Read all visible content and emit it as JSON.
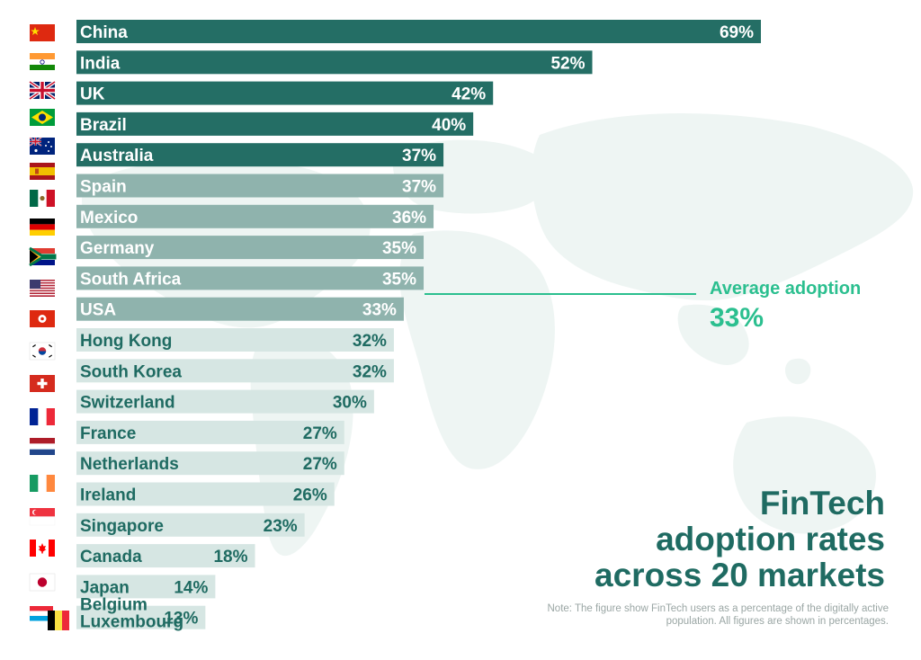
{
  "chart_data": {
    "type": "bar",
    "orientation": "horizontal",
    "categories": [
      "China",
      "India",
      "UK",
      "Brazil",
      "Australia",
      "Spain",
      "Mexico",
      "Germany",
      "South Africa",
      "USA",
      "Hong Kong",
      "South Korea",
      "Switzerland",
      "France",
      "Netherlands",
      "Ireland",
      "Singapore",
      "Canada",
      "Japan",
      "Belgium Luxembourg"
    ],
    "values": [
      69,
      52,
      42,
      40,
      37,
      37,
      36,
      35,
      35,
      33,
      32,
      32,
      30,
      27,
      27,
      26,
      23,
      18,
      14,
      13
    ],
    "value_labels": [
      "69%",
      "52%",
      "42%",
      "40%",
      "37%",
      "37%",
      "36%",
      "35%",
      "35%",
      "33%",
      "32%",
      "32%",
      "30%",
      "27%",
      "27%",
      "26%",
      "23%",
      "18%",
      "14%",
      "13%"
    ],
    "xlim": [
      0,
      69
    ],
    "grid": false,
    "average": {
      "label": "Average adoption",
      "value": 33,
      "value_label": "33%"
    },
    "colors": {
      "dark": "#246e65",
      "mid": "#8fb3ad",
      "light": "#d6e6e3",
      "accent": "#2bbf8f",
      "title": "#1f6b62"
    }
  },
  "title_lines": [
    "FinTech",
    "adoption rates",
    "across 20 markets"
  ],
  "note": "Note: The figure show FinTech users as a percentage of the digitally active population. All figures are shown in percentages.",
  "flags": [
    "china-flag-icon",
    "india-flag-icon",
    "uk-flag-icon",
    "brazil-flag-icon",
    "australia-flag-icon",
    "spain-flag-icon",
    "mexico-flag-icon",
    "germany-flag-icon",
    "south-africa-flag-icon",
    "usa-flag-icon",
    "hong-kong-flag-icon",
    "south-korea-flag-icon",
    "switzerland-flag-icon",
    "france-flag-icon",
    "netherlands-flag-icon",
    "ireland-flag-icon",
    "singapore-flag-icon",
    "canada-flag-icon",
    "japan-flag-icon",
    "belgium-luxembourg-flag-icon"
  ]
}
